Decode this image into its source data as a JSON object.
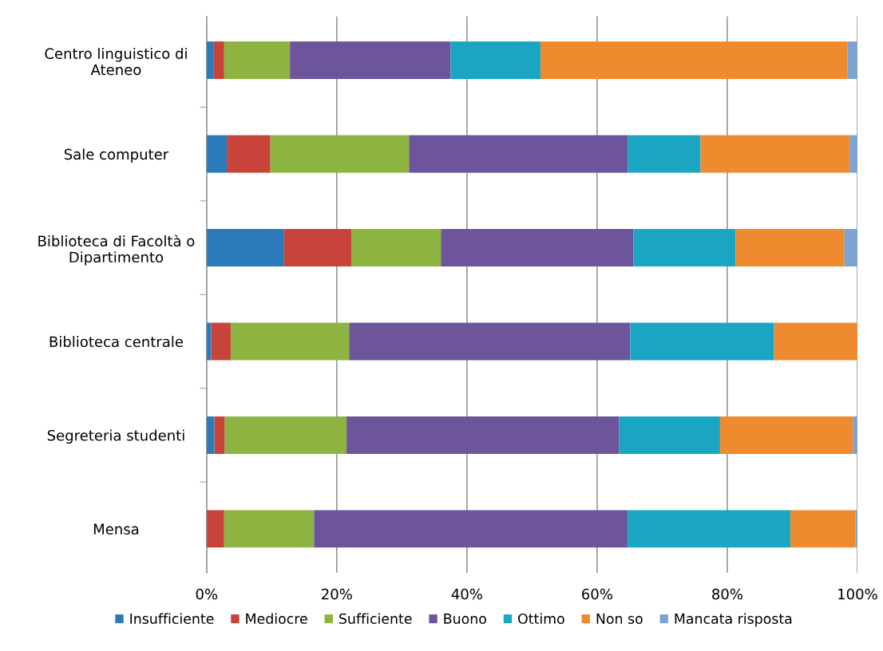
{
  "chart_data": {
    "type": "bar",
    "orientation": "horizontal",
    "stacked": true,
    "categories": [
      "Centro linguistico di\nAteneo",
      "Sale computer",
      "Biblioteca di Facoltà o\nDipartimento",
      "Biblioteca centrale",
      "Segreteria studenti",
      "Mensa"
    ],
    "series": [
      {
        "name": "Insufficiente",
        "color": "#2b7bbb",
        "values": [
          1.1,
          3.1,
          11.9,
          0.7,
          1.2,
          0
        ]
      },
      {
        "name": "Mediocre",
        "color": "#c8443a",
        "values": [
          1.6,
          6.7,
          10.4,
          3.0,
          1.6,
          2.7
        ]
      },
      {
        "name": "Sufficiente",
        "color": "#8db340",
        "values": [
          10.1,
          21.3,
          13.7,
          18.2,
          18.7,
          13.8
        ]
      },
      {
        "name": "Buono",
        "color": "#6c559b",
        "values": [
          24.7,
          33.6,
          29.6,
          43.2,
          41.9,
          48.2
        ]
      },
      {
        "name": "Ottimo",
        "color": "#1aa6c3",
        "values": [
          13.8,
          11.2,
          15.7,
          22.1,
          15.5,
          25.0
        ]
      },
      {
        "name": "Non so",
        "color": "#ef8a2e",
        "values": [
          47.2,
          22.9,
          16.7,
          12.8,
          20.4,
          10.0
        ]
      },
      {
        "name": "Mancata risposta",
        "color": "#7ea3d0",
        "values": [
          1.5,
          1.2,
          2.0,
          0,
          0.7,
          0.3
        ]
      }
    ],
    "xlim": [
      0,
      100
    ],
    "xticks": [
      {
        "value": 0,
        "label": "0%"
      },
      {
        "value": 20,
        "label": "20%"
      },
      {
        "value": 40,
        "label": "40%"
      },
      {
        "value": 60,
        "label": "60%"
      },
      {
        "value": 80,
        "label": "80%"
      },
      {
        "value": 100,
        "label": "100%"
      }
    ],
    "grid": "x",
    "legend": "bottom"
  }
}
